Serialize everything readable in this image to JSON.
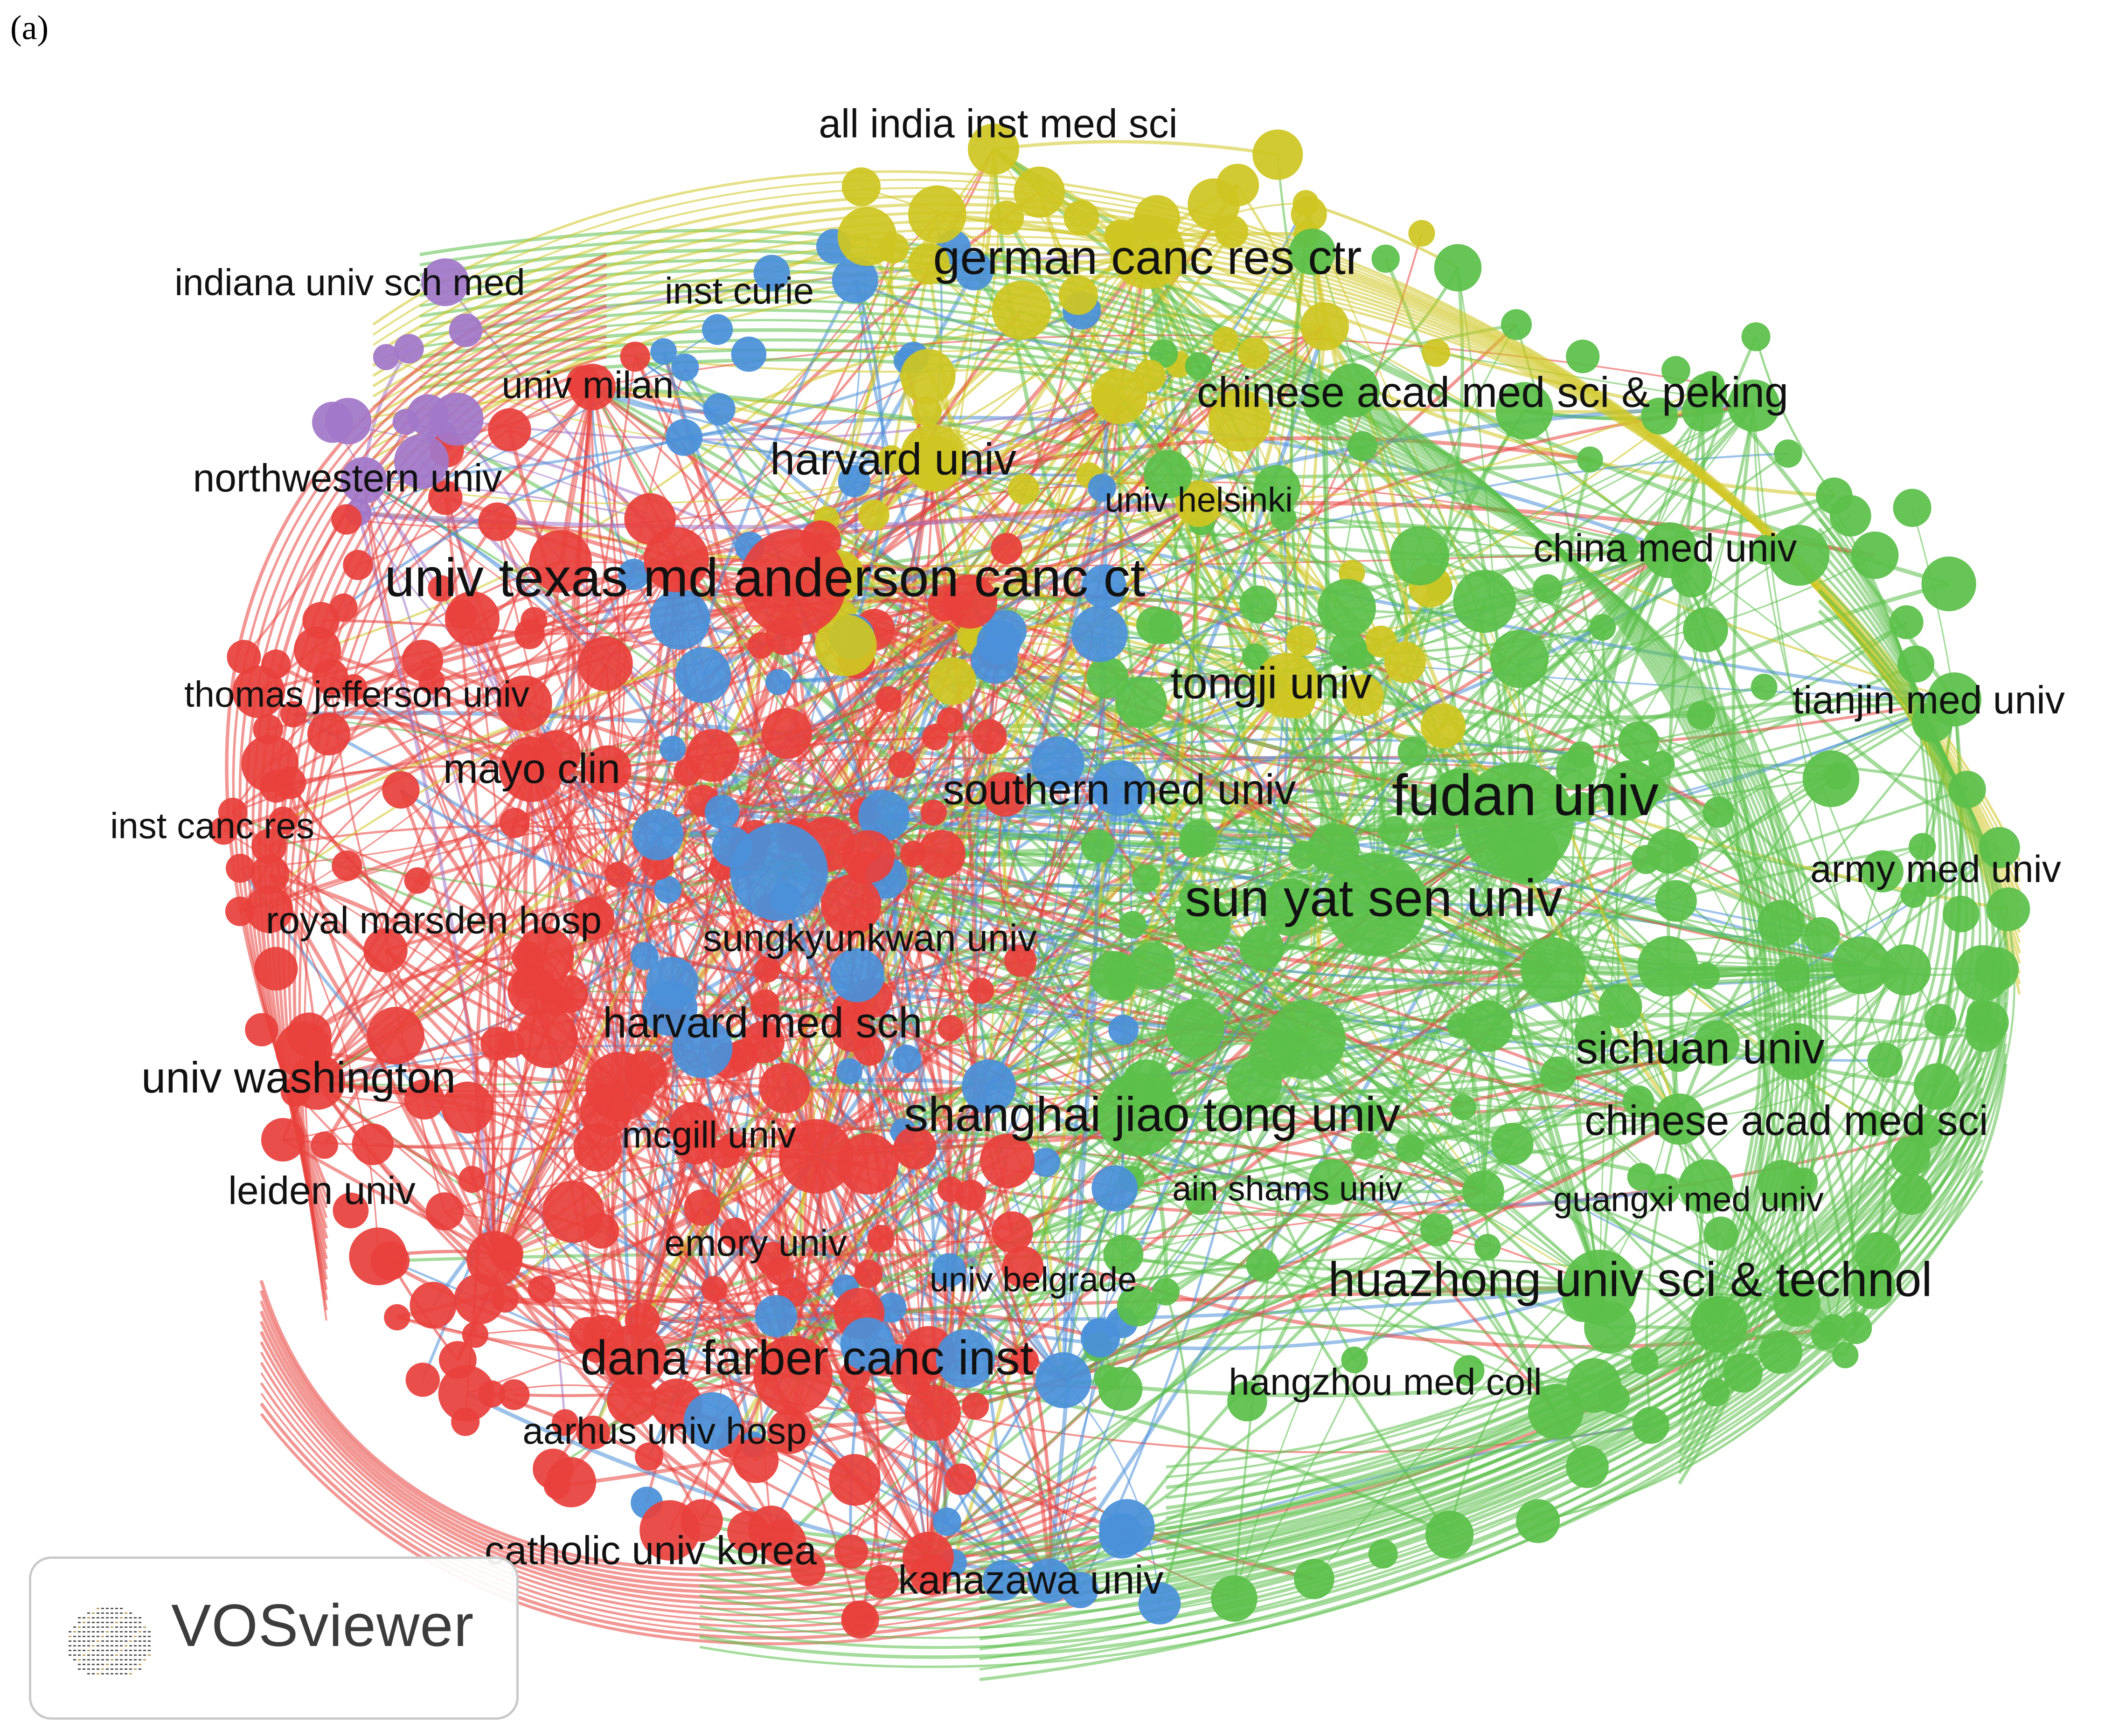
{
  "panel_label": "(a)",
  "watermark": {
    "text": "VOSviewer",
    "logo": "vosviewer-logo"
  },
  "colors": {
    "red": "#e8413c",
    "green": "#5bbf4a",
    "blue": "#4a90d9",
    "yellow": "#cfc622",
    "purple": "#a177c9"
  },
  "labels": [
    {
      "text": "all india inst med sci",
      "cluster": "yellow"
    },
    {
      "text": "german canc res ctr",
      "cluster": "yellow"
    },
    {
      "text": "indiana univ sch med",
      "cluster": "purple"
    },
    {
      "text": "inst curie",
      "cluster": "blue"
    },
    {
      "text": "univ milan",
      "cluster": "red"
    },
    {
      "text": "chinese acad med sci & peking",
      "cluster": "yellow"
    },
    {
      "text": "northwestern univ",
      "cluster": "purple"
    },
    {
      "text": "harvard univ",
      "cluster": "yellow"
    },
    {
      "text": "univ helsinki",
      "cluster": "yellow"
    },
    {
      "text": "china med univ",
      "cluster": "green"
    },
    {
      "text": "univ texas md anderson canc ct",
      "cluster": "red"
    },
    {
      "text": "thomas jefferson univ",
      "cluster": "red"
    },
    {
      "text": "tongji univ",
      "cluster": "yellow"
    },
    {
      "text": "tianjin med univ",
      "cluster": "green"
    },
    {
      "text": "mayo clin",
      "cluster": "red"
    },
    {
      "text": "southern med univ",
      "cluster": "blue"
    },
    {
      "text": "fudan univ",
      "cluster": "green"
    },
    {
      "text": "inst canc res",
      "cluster": "red"
    },
    {
      "text": "army med univ",
      "cluster": "green"
    },
    {
      "text": "sun yat sen univ",
      "cluster": "green"
    },
    {
      "text": "royal marsden hosp",
      "cluster": "red"
    },
    {
      "text": "sungkyunkwan univ",
      "cluster": "blue"
    },
    {
      "text": "harvard med sch",
      "cluster": "red"
    },
    {
      "text": "sichuan univ",
      "cluster": "green"
    },
    {
      "text": "univ washington",
      "cluster": "red"
    },
    {
      "text": "shanghai jiao tong univ",
      "cluster": "green"
    },
    {
      "text": "chinese acad med sci",
      "cluster": "green"
    },
    {
      "text": "mcgill univ",
      "cluster": "red"
    },
    {
      "text": "leiden univ",
      "cluster": "red"
    },
    {
      "text": "ain shams univ",
      "cluster": "yellow"
    },
    {
      "text": "guangxi med univ",
      "cluster": "green"
    },
    {
      "text": "emory univ",
      "cluster": "red"
    },
    {
      "text": "univ belgrade",
      "cluster": "blue"
    },
    {
      "text": "huazhong univ sci & technol",
      "cluster": "green"
    },
    {
      "text": "dana farber canc inst",
      "cluster": "red"
    },
    {
      "text": "hangzhou med coll",
      "cluster": "green"
    },
    {
      "text": "aarhus univ hosp",
      "cluster": "red"
    },
    {
      "text": "catholic univ korea",
      "cluster": "red"
    },
    {
      "text": "kanazawa univ",
      "cluster": "blue"
    }
  ]
}
